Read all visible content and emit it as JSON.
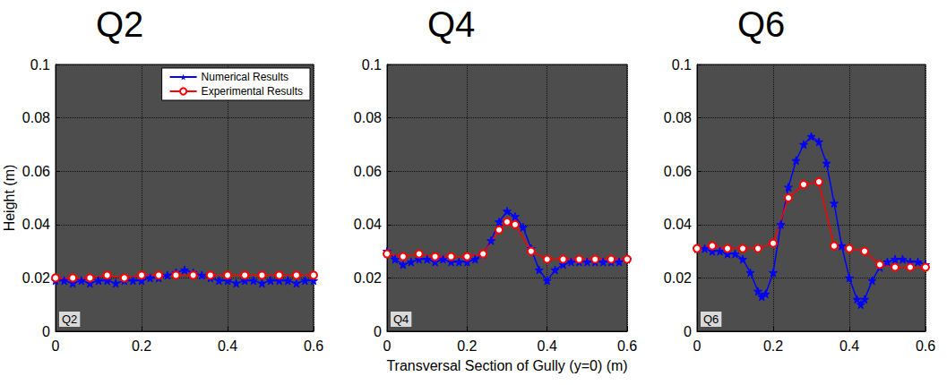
{
  "chart_data": [
    {
      "type": "line",
      "title": "Q2",
      "annotation": "Q2",
      "ylabel": "Height (m)",
      "legend": "upper right",
      "grid": true,
      "xlim": [
        0,
        0.6
      ],
      "xticks": [
        0,
        0.2,
        0.4,
        0.6
      ],
      "ylim": [
        0,
        0.1
      ],
      "yticks": [
        0,
        0.02,
        0.04,
        0.06,
        0.08,
        0.1
      ],
      "series": [
        {
          "name": "Numerical Results",
          "color": "#0000ff",
          "marker": "star",
          "line_style": "solid",
          "x": [
            0,
            0.02,
            0.04,
            0.06,
            0.08,
            0.1,
            0.12,
            0.14,
            0.16,
            0.18,
            0.2,
            0.22,
            0.24,
            0.26,
            0.28,
            0.3,
            0.32,
            0.34,
            0.36,
            0.38,
            0.4,
            0.42,
            0.44,
            0.46,
            0.48,
            0.5,
            0.52,
            0.54,
            0.56,
            0.58,
            0.6
          ],
          "values": [
            0.019,
            0.019,
            0.018,
            0.019,
            0.018,
            0.019,
            0.019,
            0.018,
            0.019,
            0.019,
            0.019,
            0.02,
            0.02,
            0.021,
            0.022,
            0.023,
            0.022,
            0.021,
            0.02,
            0.019,
            0.019,
            0.018,
            0.019,
            0.019,
            0.018,
            0.019,
            0.019,
            0.019,
            0.018,
            0.019,
            0.019
          ]
        },
        {
          "name": "Experimental Results",
          "color": "#ff0000",
          "marker": "circle",
          "line_style": "solid",
          "x": [
            0,
            0.04,
            0.08,
            0.12,
            0.16,
            0.2,
            0.24,
            0.28,
            0.32,
            0.36,
            0.4,
            0.44,
            0.48,
            0.52,
            0.56,
            0.6
          ],
          "values": [
            0.02,
            0.02,
            0.02,
            0.021,
            0.02,
            0.021,
            0.021,
            0.021,
            0.021,
            0.021,
            0.021,
            0.021,
            0.021,
            0.021,
            0.021,
            0.021
          ]
        }
      ]
    },
    {
      "type": "line",
      "title": "Q4",
      "annotation": "Q4",
      "xlabel": "Transversal Section of Gully (y=0) (m)",
      "grid": true,
      "xlim": [
        0,
        0.6
      ],
      "xticks": [
        0,
        0.2,
        0.4,
        0.6
      ],
      "ylim": [
        0,
        0.1
      ],
      "yticks": [
        0,
        0.02,
        0.04,
        0.06,
        0.08,
        0.1
      ],
      "series": [
        {
          "name": "Numerical Results",
          "color": "#0000ff",
          "marker": "star",
          "line_style": "solid",
          "x": [
            0,
            0.02,
            0.04,
            0.06,
            0.08,
            0.1,
            0.12,
            0.14,
            0.16,
            0.18,
            0.2,
            0.22,
            0.24,
            0.26,
            0.28,
            0.3,
            0.32,
            0.34,
            0.36,
            0.38,
            0.4,
            0.42,
            0.44,
            0.46,
            0.48,
            0.5,
            0.52,
            0.54,
            0.56,
            0.58,
            0.6
          ],
          "values": [
            0.03,
            0.027,
            0.025,
            0.026,
            0.027,
            0.027,
            0.026,
            0.027,
            0.026,
            0.026,
            0.026,
            0.027,
            0.029,
            0.034,
            0.041,
            0.045,
            0.043,
            0.039,
            0.031,
            0.023,
            0.019,
            0.023,
            0.025,
            0.026,
            0.026,
            0.026,
            0.026,
            0.026,
            0.026,
            0.026,
            0.027
          ]
        },
        {
          "name": "Experimental Results",
          "color": "#ff0000",
          "marker": "circle",
          "line_style": "solid",
          "x": [
            0,
            0.04,
            0.08,
            0.12,
            0.16,
            0.2,
            0.24,
            0.28,
            0.3,
            0.32,
            0.36,
            0.4,
            0.44,
            0.48,
            0.52,
            0.56,
            0.6
          ],
          "values": [
            0.029,
            0.028,
            0.029,
            0.028,
            0.028,
            0.028,
            0.029,
            0.038,
            0.041,
            0.04,
            0.03,
            0.027,
            0.027,
            0.027,
            0.027,
            0.027,
            0.027
          ]
        }
      ]
    },
    {
      "type": "line",
      "title": "Q6",
      "annotation": "Q6",
      "grid": true,
      "xlim": [
        0,
        0.6
      ],
      "xticks": [
        0,
        0.2,
        0.4,
        0.6
      ],
      "ylim": [
        0,
        0.1
      ],
      "yticks": [
        0,
        0.02,
        0.04,
        0.06,
        0.08,
        0.1
      ],
      "series": [
        {
          "name": "Numerical Results",
          "color": "#0000ff",
          "marker": "star",
          "line_style": "solid",
          "x": [
            0,
            0.02,
            0.04,
            0.06,
            0.08,
            0.1,
            0.12,
            0.14,
            0.16,
            0.17,
            0.18,
            0.2,
            0.22,
            0.24,
            0.26,
            0.28,
            0.3,
            0.32,
            0.34,
            0.36,
            0.38,
            0.4,
            0.42,
            0.43,
            0.44,
            0.46,
            0.48,
            0.5,
            0.52,
            0.54,
            0.56,
            0.58,
            0.6
          ],
          "values": [
            0.031,
            0.031,
            0.03,
            0.03,
            0.029,
            0.029,
            0.027,
            0.022,
            0.015,
            0.013,
            0.014,
            0.022,
            0.04,
            0.054,
            0.064,
            0.07,
            0.073,
            0.071,
            0.063,
            0.048,
            0.032,
            0.02,
            0.012,
            0.01,
            0.012,
            0.019,
            0.024,
            0.026,
            0.027,
            0.027,
            0.026,
            0.026,
            0.025
          ]
        },
        {
          "name": "Experimental Results",
          "color": "#ff0000",
          "marker": "circle",
          "line_style": "solid",
          "x": [
            0,
            0.04,
            0.08,
            0.12,
            0.16,
            0.2,
            0.24,
            0.28,
            0.32,
            0.36,
            0.4,
            0.44,
            0.48,
            0.52,
            0.56,
            0.6
          ],
          "values": [
            0.031,
            0.032,
            0.031,
            0.031,
            0.031,
            0.033,
            0.05,
            0.055,
            0.056,
            0.032,
            0.031,
            0.03,
            0.025,
            0.024,
            0.024,
            0.024
          ]
        }
      ]
    }
  ]
}
